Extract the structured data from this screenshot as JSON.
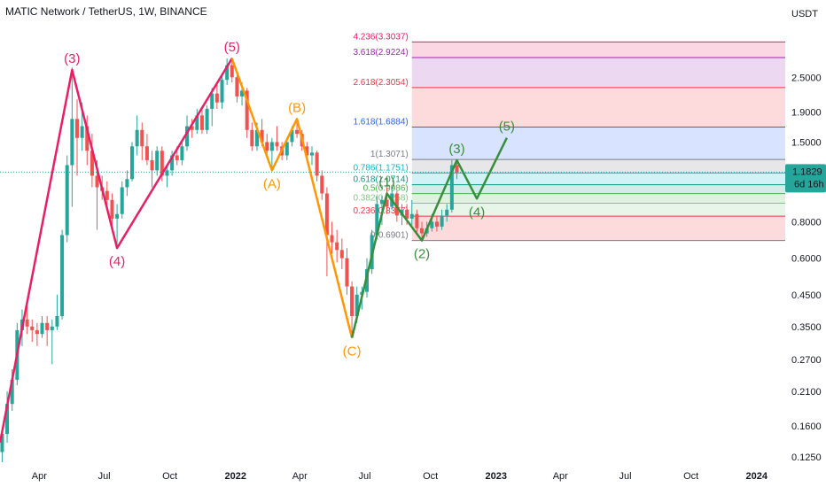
{
  "header": {
    "title": "MATIC Network / TetherUS, 1W, BINANCE"
  },
  "colors": {
    "up": "#26a69a",
    "down": "#ef5350",
    "wave_pink": "#e91e63",
    "wave_orange": "#ff9800",
    "wave_green": "#388e3c",
    "price_tag": "#26a69a",
    "fib_label_1": "#9e9e9e"
  },
  "price_tag": {
    "value": "1.1829",
    "countdown": "6d 16h"
  },
  "chart_data": {
    "type": "candlestick",
    "symbol": "MATIC Network / TetherUS",
    "interval": "1W",
    "exchange": "BINANCE",
    "y_scale": "log",
    "y_unit": "USDT",
    "ylim": [
      0.12,
      4.6
    ],
    "y_ticks": [
      "2.5000",
      "1.9000",
      "1.5000",
      "0.8000",
      "0.6000",
      "0.4500",
      "0.3500",
      "0.2700",
      "0.2100",
      "0.1600",
      "0.1250"
    ],
    "x_ticks": [
      {
        "label": "Apr",
        "date": "2021-04-01"
      },
      {
        "label": "Jul",
        "date": "2021-07-01"
      },
      {
        "label": "Oct",
        "date": "2021-10-01"
      },
      {
        "label": "2022",
        "date": "2022-01-01"
      },
      {
        "label": "Apr",
        "date": "2022-04-01"
      },
      {
        "label": "Jul",
        "date": "2022-07-01"
      },
      {
        "label": "Oct",
        "date": "2022-10-01"
      },
      {
        "label": "2023",
        "date": "2023-01-01"
      },
      {
        "label": "Apr",
        "date": "2023-04-01"
      },
      {
        "label": "Jul",
        "date": "2023-07-01"
      },
      {
        "label": "Oct",
        "date": "2023-10-01"
      },
      {
        "label": "2024",
        "date": "2024-01-01"
      }
    ],
    "x_range": [
      "2021-02-05",
      "2024-02-10"
    ],
    "last_price": 1.1829,
    "candles": [
      {
        "t": "2021-02-08",
        "o": 0.13,
        "h": 0.155,
        "l": 0.12,
        "c": 0.15
      },
      {
        "t": "2021-02-15",
        "o": 0.15,
        "h": 0.21,
        "l": 0.14,
        "c": 0.19
      },
      {
        "t": "2021-02-22",
        "o": 0.19,
        "h": 0.25,
        "l": 0.18,
        "c": 0.23
      },
      {
        "t": "2021-03-01",
        "o": 0.23,
        "h": 0.36,
        "l": 0.22,
        "c": 0.34
      },
      {
        "t": "2021-03-08",
        "o": 0.34,
        "h": 0.4,
        "l": 0.3,
        "c": 0.37
      },
      {
        "t": "2021-03-15",
        "o": 0.37,
        "h": 0.41,
        "l": 0.33,
        "c": 0.35
      },
      {
        "t": "2021-03-22",
        "o": 0.35,
        "h": 0.37,
        "l": 0.31,
        "c": 0.34
      },
      {
        "t": "2021-03-29",
        "o": 0.34,
        "h": 0.36,
        "l": 0.3,
        "c": 0.33
      },
      {
        "t": "2021-04-05",
        "o": 0.33,
        "h": 0.38,
        "l": 0.32,
        "c": 0.36
      },
      {
        "t": "2021-04-12",
        "o": 0.36,
        "h": 0.38,
        "l": 0.3,
        "c": 0.34
      },
      {
        "t": "2021-04-19",
        "o": 0.34,
        "h": 0.37,
        "l": 0.26,
        "c": 0.35
      },
      {
        "t": "2021-04-26",
        "o": 0.35,
        "h": 0.45,
        "l": 0.34,
        "c": 0.38
      },
      {
        "t": "2021-05-03",
        "o": 0.38,
        "h": 0.75,
        "l": 0.37,
        "c": 0.72
      },
      {
        "t": "2021-05-10",
        "o": 0.72,
        "h": 1.35,
        "l": 0.68,
        "c": 1.25
      },
      {
        "t": "2021-05-17",
        "o": 1.25,
        "h": 2.7,
        "l": 0.9,
        "c": 1.8
      },
      {
        "t": "2021-05-24",
        "o": 1.8,
        "h": 2.1,
        "l": 1.15,
        "c": 1.55
      },
      {
        "t": "2021-05-31",
        "o": 1.55,
        "h": 2.05,
        "l": 1.4,
        "c": 1.7
      },
      {
        "t": "2021-06-07",
        "o": 1.7,
        "h": 1.85,
        "l": 1.25,
        "c": 1.4
      },
      {
        "t": "2021-06-14",
        "o": 1.4,
        "h": 1.6,
        "l": 1.05,
        "c": 1.15
      },
      {
        "t": "2021-06-21",
        "o": 1.15,
        "h": 1.3,
        "l": 0.75,
        "c": 1.05
      },
      {
        "t": "2021-06-28",
        "o": 1.05,
        "h": 1.15,
        "l": 0.95,
        "c": 1.02
      },
      {
        "t": "2021-07-05",
        "o": 1.02,
        "h": 1.1,
        "l": 0.88,
        "c": 0.95
      },
      {
        "t": "2021-07-12",
        "o": 0.95,
        "h": 1.0,
        "l": 0.78,
        "c": 0.82
      },
      {
        "t": "2021-07-19",
        "o": 0.82,
        "h": 0.92,
        "l": 0.65,
        "c": 0.85
      },
      {
        "t": "2021-07-26",
        "o": 0.85,
        "h": 1.1,
        "l": 0.82,
        "c": 1.05
      },
      {
        "t": "2021-08-02",
        "o": 1.05,
        "h": 1.2,
        "l": 0.98,
        "c": 1.12
      },
      {
        "t": "2021-08-09",
        "o": 1.12,
        "h": 1.5,
        "l": 1.1,
        "c": 1.45
      },
      {
        "t": "2021-08-16",
        "o": 1.45,
        "h": 1.85,
        "l": 1.35,
        "c": 1.65
      },
      {
        "t": "2021-08-23",
        "o": 1.65,
        "h": 1.75,
        "l": 1.3,
        "c": 1.45
      },
      {
        "t": "2021-08-30",
        "o": 1.45,
        "h": 1.6,
        "l": 1.25,
        "c": 1.3
      },
      {
        "t": "2021-09-06",
        "o": 1.3,
        "h": 1.4,
        "l": 1.05,
        "c": 1.2
      },
      {
        "t": "2021-09-13",
        "o": 1.2,
        "h": 1.45,
        "l": 1.15,
        "c": 1.4
      },
      {
        "t": "2021-09-20",
        "o": 1.4,
        "h": 1.45,
        "l": 1.1,
        "c": 1.15
      },
      {
        "t": "2021-09-27",
        "o": 1.15,
        "h": 1.25,
        "l": 1.05,
        "c": 1.2
      },
      {
        "t": "2021-10-04",
        "o": 1.2,
        "h": 1.4,
        "l": 1.15,
        "c": 1.35
      },
      {
        "t": "2021-10-11",
        "o": 1.35,
        "h": 1.45,
        "l": 1.25,
        "c": 1.3
      },
      {
        "t": "2021-10-18",
        "o": 1.3,
        "h": 1.5,
        "l": 1.25,
        "c": 1.45
      },
      {
        "t": "2021-10-25",
        "o": 1.45,
        "h": 1.85,
        "l": 1.4,
        "c": 1.7
      },
      {
        "t": "2021-11-01",
        "o": 1.7,
        "h": 1.8,
        "l": 1.55,
        "c": 1.65
      },
      {
        "t": "2021-11-08",
        "o": 1.65,
        "h": 1.95,
        "l": 1.6,
        "c": 1.85
      },
      {
        "t": "2021-11-15",
        "o": 1.85,
        "h": 1.95,
        "l": 1.6,
        "c": 1.65
      },
      {
        "t": "2021-11-22",
        "o": 1.65,
        "h": 2.0,
        "l": 1.6,
        "c": 1.95
      },
      {
        "t": "2021-11-29",
        "o": 1.95,
        "h": 2.3,
        "l": 1.7,
        "c": 2.2
      },
      {
        "t": "2021-12-06",
        "o": 2.2,
        "h": 2.4,
        "l": 1.95,
        "c": 2.05
      },
      {
        "t": "2021-12-13",
        "o": 2.05,
        "h": 2.55,
        "l": 1.95,
        "c": 2.45
      },
      {
        "t": "2021-12-20",
        "o": 2.45,
        "h": 2.9,
        "l": 2.35,
        "c": 2.75
      },
      {
        "t": "2021-12-27",
        "o": 2.75,
        "h": 2.92,
        "l": 2.4,
        "c": 2.5
      },
      {
        "t": "2022-01-03",
        "o": 2.5,
        "h": 2.6,
        "l": 2.05,
        "c": 2.15
      },
      {
        "t": "2022-01-10",
        "o": 2.15,
        "h": 2.4,
        "l": 2.0,
        "c": 2.25
      },
      {
        "t": "2022-01-17",
        "o": 2.25,
        "h": 2.3,
        "l": 1.55,
        "c": 1.65
      },
      {
        "t": "2022-01-24",
        "o": 1.65,
        "h": 1.75,
        "l": 1.4,
        "c": 1.45
      },
      {
        "t": "2022-01-31",
        "o": 1.45,
        "h": 1.75,
        "l": 1.4,
        "c": 1.65
      },
      {
        "t": "2022-02-07",
        "o": 1.65,
        "h": 1.8,
        "l": 1.45,
        "c": 1.5
      },
      {
        "t": "2022-02-14",
        "o": 1.5,
        "h": 1.6,
        "l": 1.35,
        "c": 1.4
      },
      {
        "t": "2022-02-21",
        "o": 1.4,
        "h": 1.55,
        "l": 1.2,
        "c": 1.5
      },
      {
        "t": "2022-02-28",
        "o": 1.5,
        "h": 1.7,
        "l": 1.4,
        "c": 1.45
      },
      {
        "t": "2022-03-07",
        "o": 1.45,
        "h": 1.5,
        "l": 1.3,
        "c": 1.35
      },
      {
        "t": "2022-03-14",
        "o": 1.35,
        "h": 1.55,
        "l": 1.3,
        "c": 1.5
      },
      {
        "t": "2022-03-21",
        "o": 1.5,
        "h": 1.7,
        "l": 1.45,
        "c": 1.65
      },
      {
        "t": "2022-03-28",
        "o": 1.65,
        "h": 1.8,
        "l": 1.55,
        "c": 1.6
      },
      {
        "t": "2022-04-04",
        "o": 1.6,
        "h": 1.65,
        "l": 1.4,
        "c": 1.45
      },
      {
        "t": "2022-04-11",
        "o": 1.45,
        "h": 1.5,
        "l": 1.3,
        "c": 1.35
      },
      {
        "t": "2022-04-18",
        "o": 1.35,
        "h": 1.45,
        "l": 1.25,
        "c": 1.38
      },
      {
        "t": "2022-04-25",
        "o": 1.38,
        "h": 1.4,
        "l": 1.1,
        "c": 1.15
      },
      {
        "t": "2022-05-02",
        "o": 1.15,
        "h": 1.2,
        "l": 0.95,
        "c": 1.0
      },
      {
        "t": "2022-05-09",
        "o": 1.0,
        "h": 1.05,
        "l": 0.52,
        "c": 0.72
      },
      {
        "t": "2022-05-16",
        "o": 0.72,
        "h": 0.8,
        "l": 0.62,
        "c": 0.68
      },
      {
        "t": "2022-05-23",
        "o": 0.68,
        "h": 0.75,
        "l": 0.58,
        "c": 0.64
      },
      {
        "t": "2022-05-30",
        "o": 0.64,
        "h": 0.7,
        "l": 0.55,
        "c": 0.6
      },
      {
        "t": "2022-06-06",
        "o": 0.6,
        "h": 0.65,
        "l": 0.45,
        "c": 0.48
      },
      {
        "t": "2022-06-13",
        "o": 0.48,
        "h": 0.5,
        "l": 0.32,
        "c": 0.38
      },
      {
        "t": "2022-06-20",
        "o": 0.38,
        "h": 0.48,
        "l": 0.36,
        "c": 0.45
      },
      {
        "t": "2022-06-27",
        "o": 0.45,
        "h": 0.48,
        "l": 0.4,
        "c": 0.46
      },
      {
        "t": "2022-07-04",
        "o": 0.46,
        "h": 0.6,
        "l": 0.44,
        "c": 0.55
      },
      {
        "t": "2022-07-11",
        "o": 0.55,
        "h": 0.75,
        "l": 0.53,
        "c": 0.72
      },
      {
        "t": "2022-07-18",
        "o": 0.72,
        "h": 0.98,
        "l": 0.7,
        "c": 0.92
      },
      {
        "t": "2022-07-25",
        "o": 0.92,
        "h": 0.98,
        "l": 0.78,
        "c": 0.95
      },
      {
        "t": "2022-08-01",
        "o": 0.95,
        "h": 1.05,
        "l": 0.85,
        "c": 0.9
      },
      {
        "t": "2022-08-08",
        "o": 0.9,
        "h": 1.05,
        "l": 0.88,
        "c": 1.0
      },
      {
        "t": "2022-08-15",
        "o": 1.0,
        "h": 1.02,
        "l": 0.8,
        "c": 0.84
      },
      {
        "t": "2022-08-22",
        "o": 0.84,
        "h": 0.92,
        "l": 0.78,
        "c": 0.88
      },
      {
        "t": "2022-08-29",
        "o": 0.88,
        "h": 0.92,
        "l": 0.78,
        "c": 0.82
      },
      {
        "t": "2022-09-05",
        "o": 0.82,
        "h": 0.95,
        "l": 0.78,
        "c": 0.85
      },
      {
        "t": "2022-09-12",
        "o": 0.85,
        "h": 0.88,
        "l": 0.72,
        "c": 0.76
      },
      {
        "t": "2022-09-19",
        "o": 0.76,
        "h": 0.8,
        "l": 0.69,
        "c": 0.73
      },
      {
        "t": "2022-09-26",
        "o": 0.73,
        "h": 0.8,
        "l": 0.71,
        "c": 0.76
      },
      {
        "t": "2022-10-03",
        "o": 0.76,
        "h": 0.85,
        "l": 0.74,
        "c": 0.8
      },
      {
        "t": "2022-10-10",
        "o": 0.8,
        "h": 0.84,
        "l": 0.74,
        "c": 0.77
      },
      {
        "t": "2022-10-17",
        "o": 0.77,
        "h": 0.88,
        "l": 0.75,
        "c": 0.84
      },
      {
        "t": "2022-10-24",
        "o": 0.84,
        "h": 0.92,
        "l": 0.8,
        "c": 0.88
      },
      {
        "t": "2022-10-31",
        "o": 0.88,
        "h": 1.3,
        "l": 0.86,
        "c": 1.25
      },
      {
        "t": "2022-11-07",
        "o": 1.25,
        "h": 1.29,
        "l": 1.12,
        "c": 1.18
      }
    ],
    "fib_levels": [
      {
        "label": "4.236(3.3037)",
        "ratio": 4.236,
        "price": 3.3037,
        "color": "#e91e63"
      },
      {
        "label": "3.618(2.9224)",
        "ratio": 3.618,
        "price": 2.9224,
        "color": "#9c27b0"
      },
      {
        "label": "2.618(2.3054)",
        "ratio": 2.618,
        "price": 2.3054,
        "color": "#f23645"
      },
      {
        "label": "1.618(1.6884)",
        "ratio": 1.618,
        "price": 1.6884,
        "color": "#2962ff"
      },
      {
        "label": "1(1.3071)",
        "ratio": 1,
        "price": 1.3071,
        "color": "#787b86"
      },
      {
        "label": "0.786(1.1751)",
        "ratio": 0.786,
        "price": 1.1751,
        "color": "#00bcd4"
      },
      {
        "label": "0.618(1.0714)",
        "ratio": 0.618,
        "price": 1.0714,
        "color": "#089981"
      },
      {
        "label": "0.5(0.9986)",
        "ratio": 0.5,
        "price": 0.9986,
        "color": "#4caf50"
      },
      {
        "label": "0.382(0.9258)",
        "ratio": 0.382,
        "price": 0.9258,
        "color": "#81c784"
      },
      {
        "label": "0.236(0.8357)",
        "ratio": 0.236,
        "price": 0.8357,
        "color": "#f23645"
      },
      {
        "label": "0(0.6901)",
        "ratio": 0,
        "price": 0.6901,
        "color": "#787b86"
      }
    ],
    "fib_zone": {
      "from": "2022-09-05",
      "to": "2024-02-10"
    },
    "waves": [
      {
        "name": "pink",
        "color": "#e91e63",
        "points": [
          {
            "t": "2021-02-05",
            "p": 0.14,
            "label": ""
          },
          {
            "t": "2021-05-17",
            "p": 2.65,
            "label": "(3)"
          },
          {
            "t": "2021-07-19",
            "p": 0.65,
            "label": "(4)"
          },
          {
            "t": "2021-12-27",
            "p": 2.9,
            "label": "(5)"
          }
        ]
      },
      {
        "name": "orange",
        "color": "#ff9800",
        "points": [
          {
            "t": "2021-12-27",
            "p": 2.9,
            "label": ""
          },
          {
            "t": "2022-02-21",
            "p": 1.2,
            "label": "(A)"
          },
          {
            "t": "2022-03-28",
            "p": 1.8,
            "label": "(B)"
          },
          {
            "t": "2022-06-13",
            "p": 0.32,
            "label": "(C)"
          }
        ]
      },
      {
        "name": "green",
        "color": "#388e3c",
        "points": [
          {
            "t": "2022-06-13",
            "p": 0.32,
            "label": ""
          },
          {
            "t": "2022-08-01",
            "p": 1.0,
            "label": "(1)"
          },
          {
            "t": "2022-09-19",
            "p": 0.69,
            "label": "(2)"
          },
          {
            "t": "2022-11-07",
            "p": 1.3,
            "label": "(3)"
          },
          {
            "t": "2022-12-05",
            "p": 0.96,
            "label": "(4)"
          },
          {
            "t": "2023-01-16",
            "p": 1.55,
            "label": "(5)"
          }
        ]
      }
    ]
  }
}
